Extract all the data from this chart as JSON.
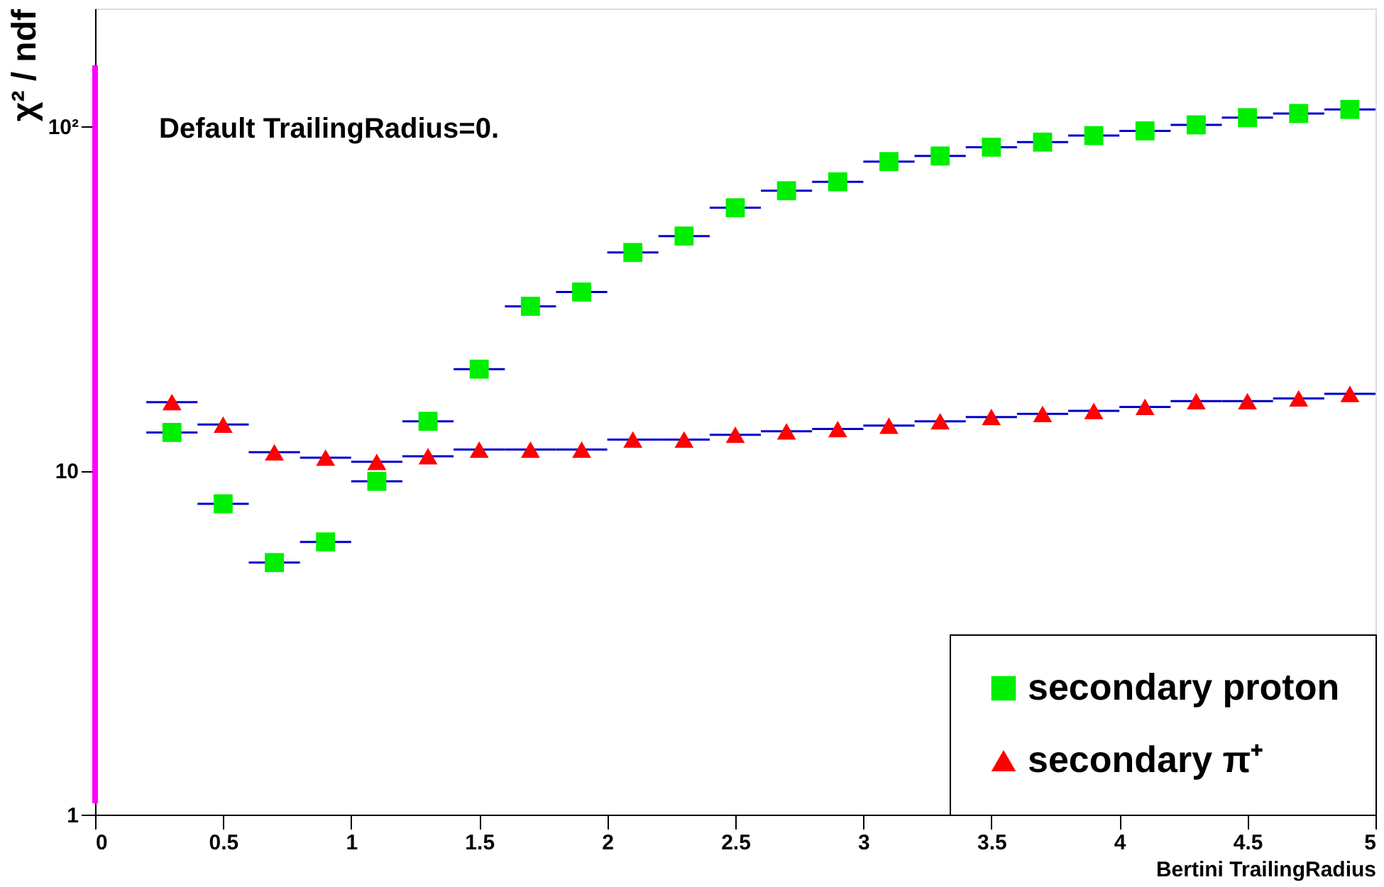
{
  "chart_data": {
    "type": "scatter",
    "xlabel": "Bertini TrailingRadius",
    "ylabel": "χ² / ndf",
    "annotations": [
      "Default TrailingRadius=0."
    ],
    "x": [
      0.3,
      0.5,
      0.7,
      0.9,
      1.1,
      1.3,
      1.5,
      1.7,
      1.9,
      2.1,
      2.3,
      2.5,
      2.7,
      2.9,
      3.1,
      3.3,
      3.5,
      3.7,
      3.9,
      4.1,
      4.3,
      4.5,
      4.7,
      4.9
    ],
    "series": [
      {
        "name": "secondary proton",
        "color": "#00ee00",
        "marker": "square",
        "values": [
          12.9,
          8.0,
          5.4,
          6.2,
          9.3,
          13.9,
          19.7,
          30,
          33,
          43,
          48,
          58,
          65,
          69,
          79,
          82,
          87,
          90,
          94,
          97,
          101,
          106,
          109,
          112
        ],
        "xerrors": [
          0.1,
          0.1,
          0.1,
          0.1,
          0.1,
          0.1,
          0.1,
          0.1,
          0.1,
          0.1,
          0.1,
          0.1,
          0.1,
          0.1,
          0.1,
          0.1,
          0.1,
          0.1,
          0.1,
          0.1,
          0.1,
          0.1,
          0.1,
          0.1
        ]
      },
      {
        "name": "secondary π⁺",
        "color": "#ff0000",
        "marker": "triangle",
        "values": [
          15.8,
          13.6,
          11.3,
          10.9,
          10.6,
          11.0,
          11.5,
          11.5,
          11.5,
          12.3,
          12.3,
          12.7,
          13.0,
          13.2,
          13.5,
          13.9,
          14.3,
          14.6,
          14.9,
          15.3,
          15.9,
          15.9,
          16.2,
          16.7
        ],
        "xerrors": [
          0.1,
          0.1,
          0.1,
          0.1,
          0.1,
          0.1,
          0.1,
          0.1,
          0.1,
          0.1,
          0.1,
          0.1,
          0.1,
          0.1,
          0.1,
          0.1,
          0.1,
          0.1,
          0.1,
          0.1,
          0.1,
          0.1,
          0.1,
          0.1
        ]
      }
    ],
    "xlim": [
      0,
      5
    ],
    "xticks": [
      0,
      0.5,
      1,
      1.5,
      2,
      2.5,
      3,
      3.5,
      4,
      4.5,
      5
    ],
    "ylim": [
      1,
      220
    ],
    "yticks": [
      1,
      10,
      {
        "value": 100,
        "label": "10²"
      }
    ],
    "log": true,
    "grid": false,
    "legend": "bottom right",
    "ref_lines": [
      {
        "axis": "x",
        "value": 0,
        "color": "#ff00ff"
      }
    ]
  }
}
